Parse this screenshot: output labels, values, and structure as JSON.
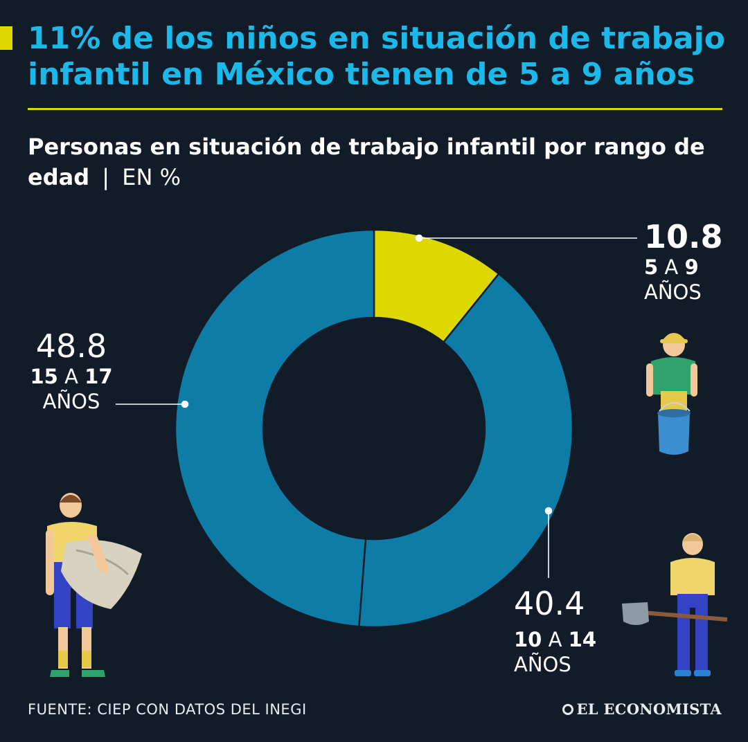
{
  "header": {
    "title": "11% de los niños en situación de trabajo infantil en México tienen de 5 a 9 años"
  },
  "chart_data": {
    "type": "pie",
    "subtitle": "Personas en situación de trabajo infantil por rango de edad",
    "unit": "EN %",
    "slices": [
      {
        "value": 10.8,
        "range_from": "5",
        "range_to": "9",
        "years_label": "AÑOS",
        "color": "#dcd800"
      },
      {
        "value": 40.4,
        "range_from": "10",
        "range_to": "14",
        "years_label": "AÑOS",
        "color": "#0d7ca7"
      },
      {
        "value": 48.8,
        "range_from": "15",
        "range_to": "17",
        "years_label": "AÑOS",
        "color": "#0d7ca7"
      }
    ],
    "connector": "A"
  },
  "footer": {
    "source": "FUENTE: CIEP CON DATOS DEL INEGI",
    "brand": "EL ECONOMISTA"
  },
  "colors": {
    "background": "#121c29",
    "title": "#1ab9ea",
    "accent": "#dcd800",
    "slice_blue": "#0d7ca7"
  },
  "illustrations": [
    "child-with-bucket-icon",
    "child-with-shovel-icon",
    "child-with-sack-icon"
  ]
}
